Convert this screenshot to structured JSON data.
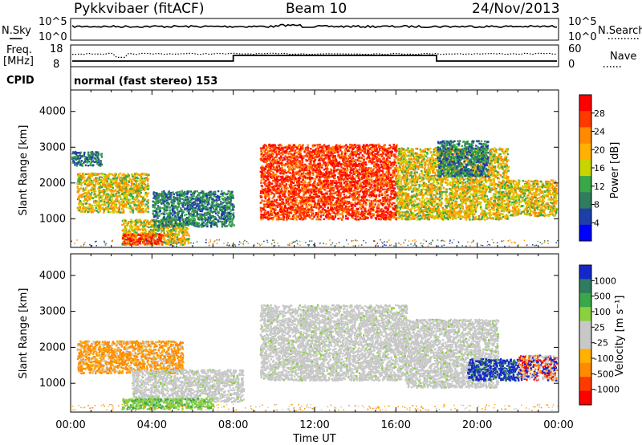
{
  "header": {
    "station": "Pykkvibaer (fitACF)",
    "beam": "Beam 10",
    "date": "24/Nov/2013"
  },
  "strips": {
    "nsky_label": "N.Sky",
    "nsky_ticks": [
      "10^5",
      "10^0"
    ],
    "nsearch_label": "N.Search",
    "nsearch_ticks": [
      "10^5",
      "10^0"
    ],
    "freq_label_1": "Freq.",
    "freq_label_2": "[MHz]",
    "freq_ticks": [
      "18",
      "8"
    ],
    "nave_label": "Nave",
    "nave_ticks": [
      "60",
      "0"
    ],
    "cpid_label": "CPID",
    "cpid_text": "normal (fast stereo) 153"
  },
  "chart_data": [
    {
      "type": "heatmap",
      "name": "power",
      "ylabel": "Slant Range [km]",
      "ylim": [
        200,
        4600
      ],
      "yticks": [
        1000,
        2000,
        3000,
        4000
      ],
      "xlim": [
        0,
        24
      ],
      "colorbar_label": "Power [dB]",
      "colorbar_ticks": [
        "28",
        "24",
        "20",
        "16",
        "12",
        "8",
        "4"
      ],
      "colorbar_colors": [
        "#ff0000",
        "#ff3a00",
        "#ff8a00",
        "#ffb000",
        "#c8d400",
        "#3aa84a",
        "#2f7c5e",
        "#1e3fa8",
        "#0000ff"
      ],
      "regions": [
        {
          "t0": 0.3,
          "t1": 3.8,
          "r0": 1200,
          "r1": 2300,
          "level": "mid"
        },
        {
          "t0": 0.0,
          "t1": 1.5,
          "r0": 2500,
          "r1": 2900,
          "level": "low"
        },
        {
          "t0": 2.5,
          "t1": 5.8,
          "r0": 300,
          "r1": 1000,
          "level": "mid"
        },
        {
          "t0": 4.0,
          "t1": 8.0,
          "r0": 800,
          "r1": 1800,
          "level": "low"
        },
        {
          "t0": 2.5,
          "t1": 4.5,
          "r0": 300,
          "r1": 600,
          "level": "high"
        },
        {
          "t0": 9.3,
          "t1": 16.0,
          "r0": 1000,
          "r1": 3100,
          "level": "high"
        },
        {
          "t0": 16.0,
          "t1": 21.5,
          "r0": 1000,
          "r1": 3000,
          "level": "mid"
        },
        {
          "t0": 21.5,
          "t1": 24.0,
          "r0": 1100,
          "r1": 2100,
          "level": "mid"
        },
        {
          "t0": 18.0,
          "t1": 20.5,
          "r0": 2200,
          "r1": 3200,
          "level": "low"
        }
      ]
    },
    {
      "type": "heatmap",
      "name": "velocity",
      "ylabel": "Slant Range [km]",
      "ylim": [
        200,
        4600
      ],
      "yticks": [
        1000,
        2000,
        3000,
        4000
      ],
      "xlim": [
        0,
        24
      ],
      "xticks": [
        "00:00",
        "04:00",
        "08:00",
        "12:00",
        "16:00",
        "20:00",
        "00:00"
      ],
      "xlabel": "Time UT",
      "colorbar_label": "Velocity [m s⁻¹]",
      "colorbar_ticks": [
        "1000",
        "500",
        "100",
        "25",
        "-25",
        "-100",
        "-500",
        "-1000"
      ],
      "colorbar_colors": [
        "#1428c8",
        "#2f7c5e",
        "#3aa84a",
        "#8ad040",
        "#c8c8c8",
        "#c8c8c8",
        "#ffb000",
        "#ff8a00",
        "#ff3a00",
        "#ff0000"
      ],
      "regions": [
        {
          "t0": 0.3,
          "t1": 5.5,
          "r0": 1300,
          "r1": 2200,
          "level": "orange"
        },
        {
          "t0": 3.0,
          "t1": 8.5,
          "r0": 500,
          "r1": 1400,
          "level": "grey"
        },
        {
          "t0": 2.5,
          "t1": 7.0,
          "r0": 300,
          "r1": 600,
          "level": "green"
        },
        {
          "t0": 9.3,
          "t1": 16.5,
          "r0": 1100,
          "r1": 3200,
          "level": "grey"
        },
        {
          "t0": 16.5,
          "t1": 21.0,
          "r0": 900,
          "r1": 2800,
          "level": "grey"
        },
        {
          "t0": 19.5,
          "t1": 22.0,
          "r0": 1100,
          "r1": 1700,
          "level": "blue"
        },
        {
          "t0": 22.0,
          "t1": 24.0,
          "r0": 1100,
          "r1": 1800,
          "level": "mixed"
        }
      ]
    }
  ]
}
